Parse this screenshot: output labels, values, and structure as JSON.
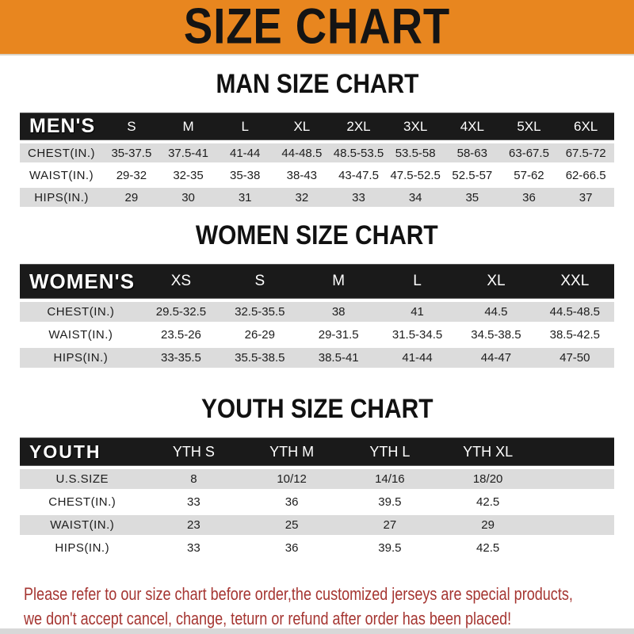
{
  "banner": {
    "title": "SIZE CHART"
  },
  "sections": [
    {
      "heading": "MAN SIZE CHART",
      "table": {
        "label": "MEN'S",
        "columns": [
          "S",
          "M",
          "L",
          "XL",
          "2XL",
          "3XL",
          "4XL",
          "5XL",
          "6XL"
        ],
        "rows": [
          {
            "label": "CHEST(IN.)",
            "values": [
              "35-37.5",
              "37.5-41",
              "41-44",
              "44-48.5",
              "48.5-53.5",
              "53.5-58",
              "58-63",
              "63-67.5",
              "67.5-72"
            ]
          },
          {
            "label": "WAIST(IN.)",
            "values": [
              "29-32",
              "32-35",
              "35-38",
              "38-43",
              "43-47.5",
              "47.5-52.5",
              "52.5-57",
              "57-62",
              "62-66.5"
            ]
          },
          {
            "label": "HIPS(IN.)",
            "values": [
              "29",
              "30",
              "31",
              "32",
              "33",
              "34",
              "35",
              "36",
              "37"
            ]
          }
        ]
      }
    },
    {
      "heading": "WOMEN SIZE CHART",
      "table": {
        "label": "WOMEN'S",
        "columns": [
          "XS",
          "S",
          "M",
          "L",
          "XL",
          "XXL"
        ],
        "rows": [
          {
            "label": "CHEST(IN.)",
            "values": [
              "29.5-32.5",
              "32.5-35.5",
              "38",
              "41",
              "44.5",
              "44.5-48.5"
            ]
          },
          {
            "label": "WAIST(IN.)",
            "values": [
              "23.5-26",
              "26-29",
              "29-31.5",
              "31.5-34.5",
              "34.5-38.5",
              "38.5-42.5"
            ]
          },
          {
            "label": "HIPS(IN.)",
            "values": [
              "33-35.5",
              "35.5-38.5",
              "38.5-41",
              "41-44",
              "44-47",
              "47-50"
            ]
          }
        ]
      }
    },
    {
      "heading": "YOUTH SIZE CHART",
      "table": {
        "label": "YOUTH",
        "columns": [
          "YTH S",
          "YTH M",
          "YTH L",
          "YTH XL"
        ],
        "rows": [
          {
            "label": "U.S.SIZE",
            "values": [
              "8",
              "10/12",
              "14/16",
              "18/20"
            ]
          },
          {
            "label": "CHEST(IN.)",
            "values": [
              "33",
              "36",
              "39.5",
              "42.5"
            ]
          },
          {
            "label": "WAIST(IN.)",
            "values": [
              "23",
              "25",
              "27",
              "29"
            ]
          },
          {
            "label": "HIPS(IN.)",
            "values": [
              "33",
              "36",
              "39.5",
              "42.5"
            ]
          }
        ]
      }
    }
  ],
  "disclaimer": {
    "line1": "Please refer to our size chart before order,the customized jerseys are special products,",
    "line2": "we don't accept cancel, change, teturn or refund after order has been placed!"
  },
  "colors": {
    "banner_bg": "#E8861F",
    "bar_bg": "#1A1A1A",
    "bar_text": "#FFFFFF",
    "row_alt_bg": "#DCDCDC",
    "row_bg": "#FFFFFF",
    "heading_text": "#111111",
    "data_text": "#1D1D1D",
    "disclaimer_text": "#A53531"
  }
}
